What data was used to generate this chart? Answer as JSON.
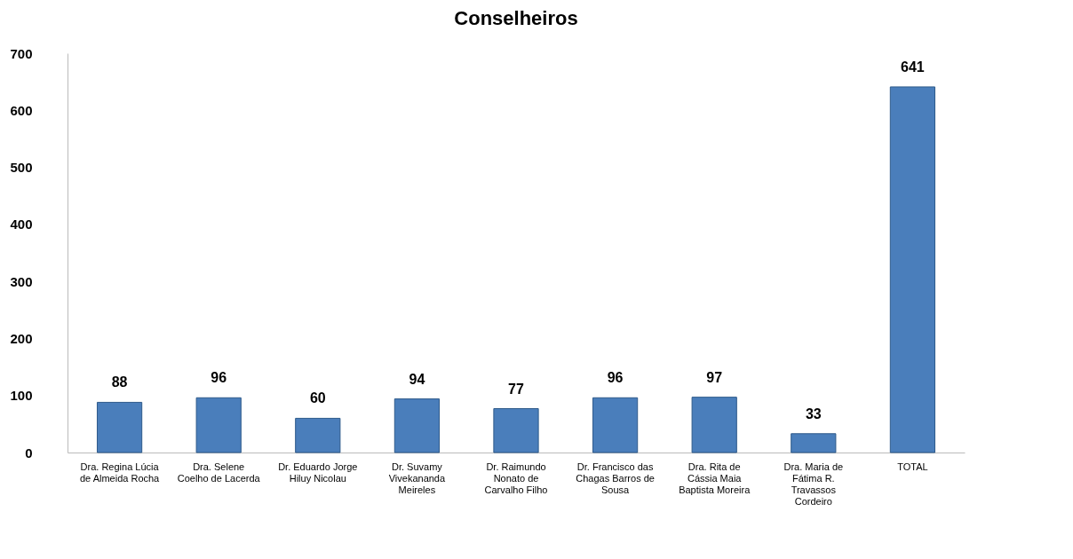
{
  "chart_data": {
    "type": "bar",
    "title": "Conselheiros",
    "categories": [
      "Dra. Regina Lúcia de Almeida Rocha",
      "Dra. Selene Coelho de Lacerda",
      "Dr. Eduardo Jorge Hiluy Nicolau",
      "Dr. Suvamy Vivekananda Meireles",
      "Dr. Raimundo Nonato de Carvalho Filho",
      "Dr. Francisco das Chagas Barros de Sousa",
      "Dra. Rita de Cássia Maia Baptista Moreira",
      "Dra. Maria de Fátima R. Travassos Cordeiro",
      "TOTAL"
    ],
    "values": [
      88,
      96,
      60,
      94,
      77,
      96,
      97,
      33,
      641
    ],
    "color": "#4a7ebb",
    "ylim": [
      0,
      700
    ],
    "yticks": [
      0,
      100,
      200,
      300,
      400,
      500,
      600,
      700
    ],
    "data_labels": true,
    "grid": false
  }
}
